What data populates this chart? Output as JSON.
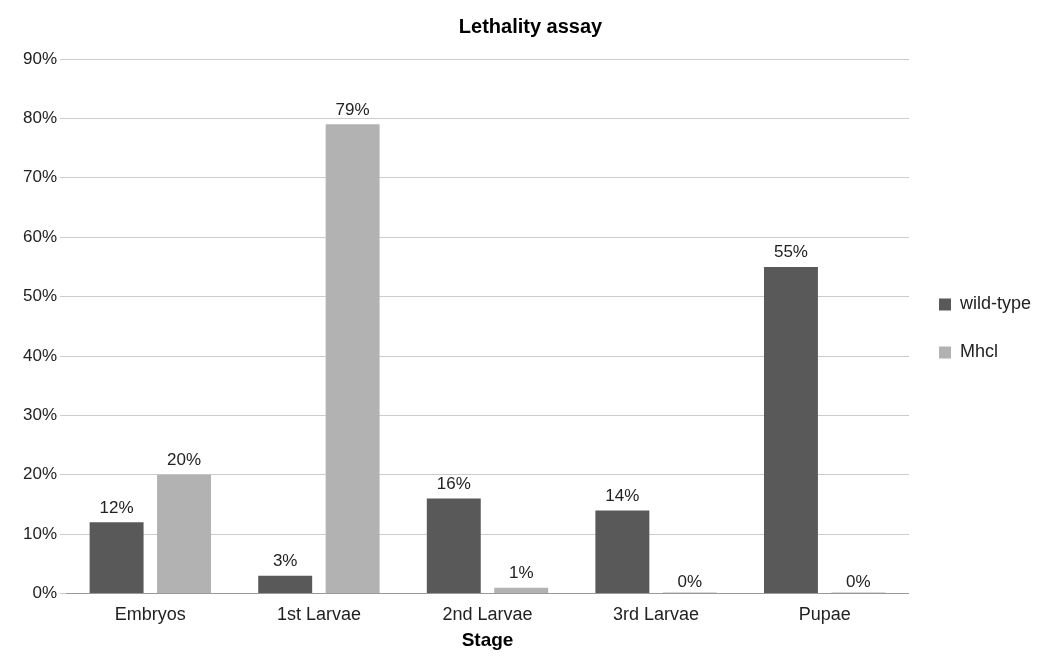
{
  "chart_data": {
    "type": "bar",
    "title": "Lethality assay",
    "xlabel": "Stage",
    "categories": [
      "Embryos",
      "1st Larvae",
      "2nd Larvae",
      "3rd Larvae",
      "Pupae"
    ],
    "series": [
      {
        "name": "wild-type",
        "color": "#595959",
        "values": [
          12,
          3,
          16,
          14,
          55
        ],
        "value_labels": [
          "12%",
          "3%",
          "16%",
          "14%",
          "55%"
        ]
      },
      {
        "name": "Mhcl",
        "color": "#b2b2b2",
        "values": [
          20,
          79,
          1,
          0,
          0
        ],
        "value_labels": [
          "20%",
          "79%",
          "1%",
          "0%",
          "0%"
        ]
      }
    ],
    "ylim": [
      0,
      90
    ],
    "yticks": [
      {
        "value": 0,
        "label": "0%"
      },
      {
        "value": 10,
        "label": "10%"
      },
      {
        "value": 20,
        "label": "20%"
      },
      {
        "value": 30,
        "label": "30%"
      },
      {
        "value": 40,
        "label": "40%"
      },
      {
        "value": 50,
        "label": "50%"
      },
      {
        "value": 60,
        "label": "60%"
      },
      {
        "value": 70,
        "label": "70%"
      },
      {
        "value": 80,
        "label": "80%"
      },
      {
        "value": 90,
        "label": "90%"
      }
    ],
    "grid": "y",
    "legend": "right"
  }
}
